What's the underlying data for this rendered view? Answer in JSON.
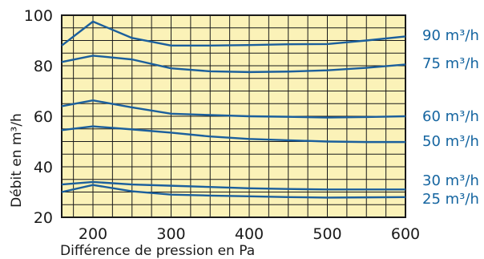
{
  "chart_data": {
    "type": "line",
    "xlabel": "Différence de pression en Pa",
    "ylabel": "Débit en m³/h",
    "xlim": [
      160,
      600
    ],
    "ylim": [
      20,
      100
    ],
    "x_ticks": [
      "200",
      "300",
      "400",
      "500",
      "600"
    ],
    "y_ticks": [
      "20",
      "40",
      "60",
      "80",
      "100"
    ],
    "grid": true,
    "background_color": "#fbf2b8",
    "line_color": "#1b5f9c",
    "label_color": "#1565a0",
    "series": [
      {
        "name": "90 m³/h",
        "x": [
          160,
          200,
          250,
          300,
          350,
          400,
          450,
          500,
          550,
          600
        ],
        "y": [
          88,
          97.5,
          91,
          88,
          88,
          88.2,
          88.5,
          88.6,
          90,
          91.6
        ]
      },
      {
        "name": "75 m³/h",
        "x": [
          160,
          200,
          250,
          300,
          350,
          400,
          450,
          500,
          550,
          600
        ],
        "y": [
          81.5,
          84,
          82.5,
          79,
          77.8,
          77.5,
          77.7,
          78.2,
          79.2,
          80.5
        ]
      },
      {
        "name": "60 m³/h",
        "x": [
          160,
          200,
          250,
          300,
          350,
          400,
          450,
          500,
          550,
          600
        ],
        "y": [
          64,
          66.3,
          63.5,
          61,
          60.5,
          60,
          59.8,
          59.5,
          59.7,
          60
        ]
      },
      {
        "name": "50 m³/h",
        "x": [
          160,
          200,
          250,
          300,
          350,
          400,
          450,
          500,
          550,
          600
        ],
        "y": [
          54.5,
          56,
          54.8,
          53.5,
          52,
          51,
          50.5,
          50,
          49.8,
          49.8
        ]
      },
      {
        "name": "30 m³/h",
        "x": [
          160,
          200,
          250,
          300,
          350,
          400,
          450,
          500,
          550,
          600
        ],
        "y": [
          33,
          34,
          33,
          32.5,
          32,
          31.5,
          31.2,
          31,
          31,
          31
        ]
      },
      {
        "name": "25 m³/h",
        "x": [
          160,
          200,
          250,
          300,
          350,
          400,
          450,
          500,
          550,
          600
        ],
        "y": [
          30,
          32.8,
          30.3,
          29,
          28.6,
          28.3,
          28,
          27.8,
          27.9,
          28
        ]
      }
    ]
  }
}
